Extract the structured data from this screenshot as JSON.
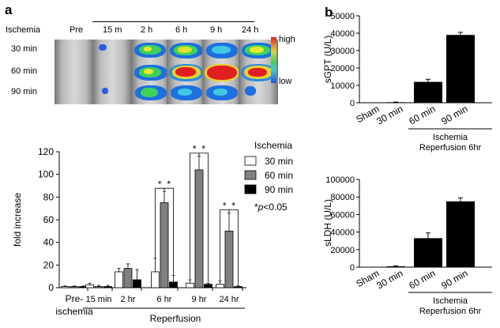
{
  "panel_a": {
    "label": "a",
    "imaging": {
      "row_header": "Ischemia",
      "pre_label": "Pre",
      "time_labels": [
        "15 m",
        "2 h",
        "6 h",
        "9 h",
        "24 h"
      ],
      "row_labels": [
        "30 min",
        "60 min",
        "90 min"
      ],
      "colorbar_high": "high",
      "colorbar_low": "low"
    }
  },
  "panel_b": {
    "label": "b"
  },
  "chart_data": [
    {
      "id": "fold-increase",
      "type": "bar",
      "ylabel": "fold increase",
      "ylim": [
        0,
        120
      ],
      "yticks": [
        0,
        20,
        40,
        60,
        80,
        100,
        120
      ],
      "groups": [
        "Pre-\nischemia",
        "15 min",
        "2 hr",
        "6 hr",
        "9 hr",
        "24 hr"
      ],
      "group_line1": [
        "Pre-",
        "15 min",
        "2 hr",
        "6 hr",
        "9 hr",
        "24 hr"
      ],
      "group_line2": [
        "ischemia",
        "",
        "",
        "",
        "",
        ""
      ],
      "xlabel": "Reperfusion",
      "legend_title": "Ischemia",
      "series": [
        {
          "name": "30 min",
          "color": "#ffffff",
          "values": [
            1,
            2.5,
            14,
            14,
            4,
            3
          ],
          "errors": [
            0.5,
            1.5,
            3,
            12,
            3,
            3
          ]
        },
        {
          "name": "60 min",
          "color": "#808080",
          "values": [
            1,
            1,
            17,
            75,
            104,
            50
          ],
          "errors": [
            0.5,
            1,
            4,
            10,
            12,
            16
          ]
        },
        {
          "name": "90 min",
          "color": "#000000",
          "values": [
            1,
            1,
            7,
            5,
            3,
            1
          ],
          "errors": [
            0.5,
            1,
            9,
            6,
            1,
            1
          ]
        }
      ],
      "significance_marker": "*",
      "significance_note_prefix": "*",
      "significance_note_var": "p",
      "significance_note_suffix": "<0.05"
    },
    {
      "id": "sGPT",
      "type": "bar",
      "ylabel": "sGPT (U/L)",
      "ylim": [
        0,
        50000
      ],
      "yticks": [
        0,
        10000,
        20000,
        30000,
        40000,
        50000
      ],
      "categories": [
        "Sham",
        "30 min",
        "60 min",
        "90 min"
      ],
      "values": [
        0,
        300,
        12000,
        39000
      ],
      "errors": [
        0,
        100,
        1500,
        1500
      ],
      "group_label_1": "Ischemia",
      "group_label_2": "Reperfusion 6hr"
    },
    {
      "id": "sLDH",
      "type": "bar",
      "ylabel": "sLDH (U/L)",
      "ylim": [
        0,
        100000
      ],
      "yticks": [
        0,
        20000,
        40000,
        60000,
        80000,
        100000
      ],
      "categories": [
        "Sham",
        "30 min",
        "60 min",
        "90 min"
      ],
      "values": [
        0,
        1000,
        33000,
        75000
      ],
      "errors": [
        0,
        500,
        6000,
        4000
      ],
      "group_label_1": "Ischemia",
      "group_label_2": "Reperfusion 6hr"
    }
  ]
}
